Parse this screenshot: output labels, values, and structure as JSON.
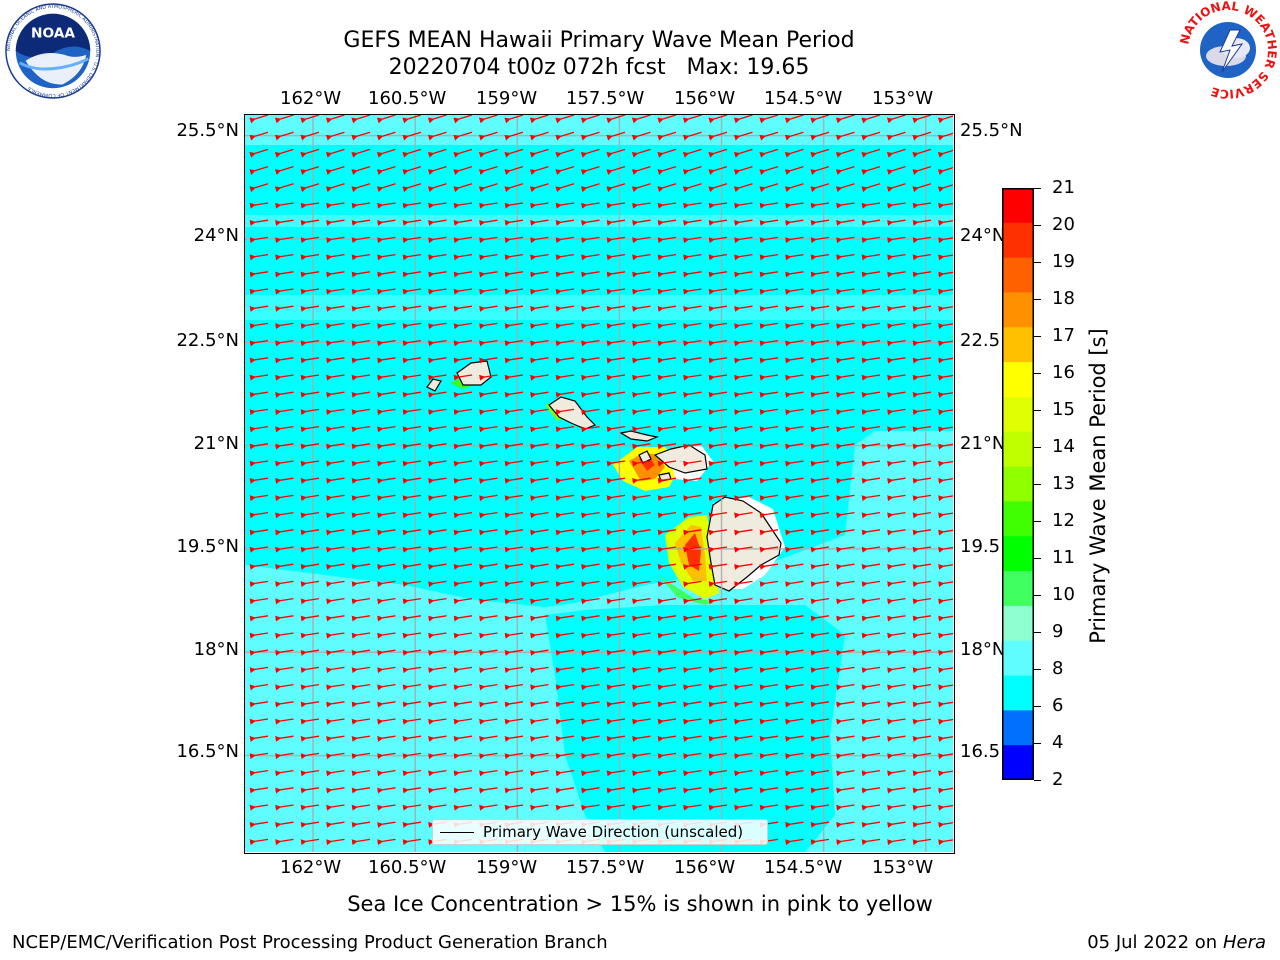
{
  "title": {
    "line1": "GEFS MEAN Hawaii Primary Wave Mean Period",
    "line2": "20220704 t00z 072h fcst   Max: 19.65"
  },
  "logos": {
    "left": {
      "name": "noaa-logo",
      "text": "NOAA",
      "ring_text": "NATIONAL OCEANIC AND ATMOSPHERIC ADMINISTRATION · U.S. DEPARTMENT OF COMMERCE"
    },
    "right": {
      "name": "nws-logo",
      "ring_text": "NATIONAL WEATHER SERVICE"
    }
  },
  "map": {
    "lon_ticks": [
      "162°W",
      "160.5°W",
      "159°W",
      "157.5°W",
      "156°W",
      "154.5°W",
      "153°W"
    ],
    "lat_ticks_left": [
      "25.5°N",
      "24°N",
      "22.5°N",
      "21°N",
      "19.5°N",
      "18°N",
      "16.5°N"
    ],
    "lat_ticks_right": [
      "25.5°N",
      "24°N",
      "22.5",
      "21°N",
      "19.5",
      "18°N",
      "16.5"
    ],
    "lon_values": [
      -162,
      -160.5,
      -159,
      -157.5,
      -156,
      -154.5,
      -153
    ],
    "lat_values": [
      25.5,
      24,
      22.5,
      21,
      19.5,
      18,
      16.5
    ],
    "extent": {
      "lon_min": -163,
      "lon_max": -152.6,
      "lat_min": 15.1,
      "lat_max": 25.8
    },
    "grid": true,
    "vector_color": "#ff0000",
    "ocean_colors": {
      "6-8": "#00ffff",
      "8-9": "#5ffdff"
    },
    "land_color": "#efebde",
    "islands": [
      "Niihau",
      "Kauai",
      "Oahu",
      "Molokai",
      "Lanai",
      "Maui",
      "Kahoolawe",
      "Hawaii"
    ],
    "wave_direction": "from east (arrows pointing west)"
  },
  "legend": {
    "label": "Primary Wave Direction (unscaled)"
  },
  "colorbar": {
    "label": "Primary Wave Mean Period [s]",
    "ticks": [
      "21",
      "20",
      "19",
      "18",
      "17",
      "16",
      "15",
      "14",
      "13",
      "12",
      "11",
      "10",
      "9",
      "8",
      "6",
      "4",
      "2"
    ],
    "colors": [
      "#ff0000",
      "#ff3000",
      "#ff6000",
      "#ff9000",
      "#ffc000",
      "#ffff00",
      "#e0ff00",
      "#c0ff00",
      "#90ff00",
      "#40ff00",
      "#00ff00",
      "#40ff60",
      "#90ffd0",
      "#5ffdff",
      "#00ffff",
      "#0070ff",
      "#0000ff"
    ]
  },
  "sea_ice_note": "Sea Ice Concentration > 15% is shown in pink to yellow",
  "footer": {
    "left": "NCEP/EMC/Verification Post Processing Product Generation Branch",
    "right_date": "05 Jul 2022 on",
    "right_host": "Hera"
  }
}
